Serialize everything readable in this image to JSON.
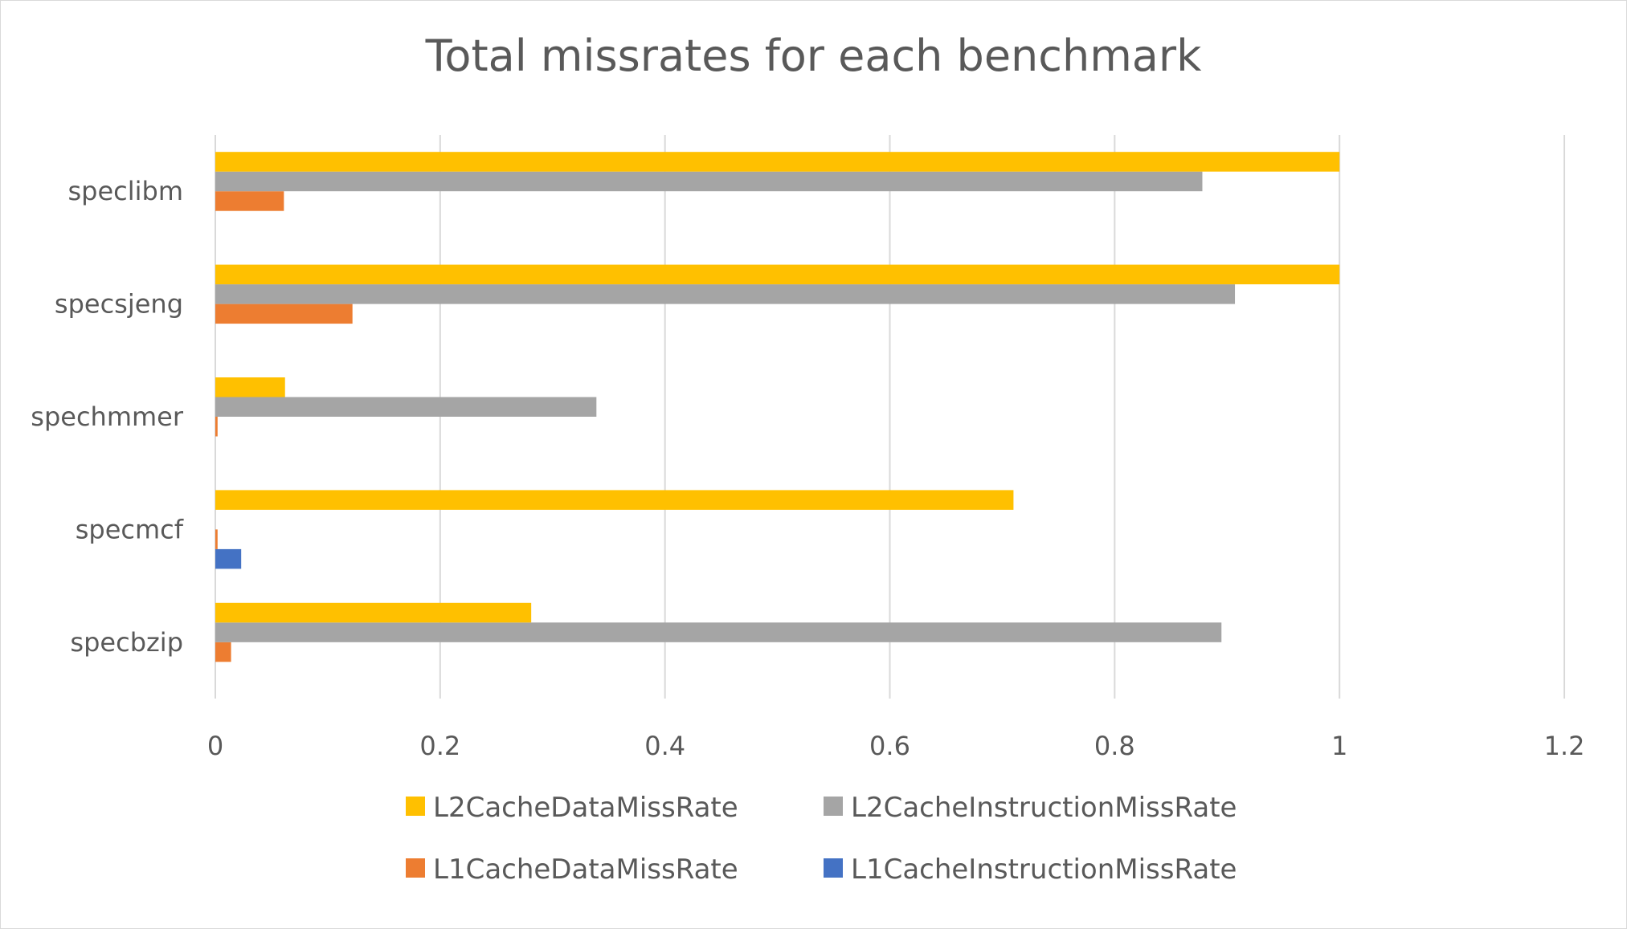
{
  "chart_data": {
    "type": "bar",
    "orientation": "horizontal",
    "title": "Total missrates for each benchmark",
    "categories": [
      "specbzip",
      "specmcf",
      "spechmmer",
      "specsjeng",
      "speclibm"
    ],
    "series": [
      {
        "name": "L1CacheInstructionMissRate",
        "color": "#4472c4",
        "values": [
          0.0,
          0.023,
          0.0,
          0.0,
          0.0
        ]
      },
      {
        "name": "L1CacheDataMissRate",
        "color": "#ed7d31",
        "values": [
          0.014,
          0.002,
          0.002,
          0.122,
          0.061
        ]
      },
      {
        "name": "L2CacheInstructionMissRate",
        "color": "#a5a5a5",
        "values": [
          0.895,
          0.0,
          0.339,
          0.907,
          0.878
        ]
      },
      {
        "name": "L2CacheDataMissRate",
        "color": "#ffc000",
        "values": [
          0.281,
          0.71,
          0.062,
          1.0,
          1.0
        ]
      }
    ],
    "xlim": [
      0,
      1.2
    ],
    "xticks": [
      "0",
      "0.2",
      "0.4",
      "0.6",
      "0.8",
      "1",
      "1.2"
    ],
    "grid": true,
    "legend": {
      "position": "bottom",
      "order": [
        "L2CacheDataMissRate",
        "L2CacheInstructionMissRate",
        "L1CacheDataMissRate",
        "L1CacheInstructionMissRate"
      ]
    }
  }
}
